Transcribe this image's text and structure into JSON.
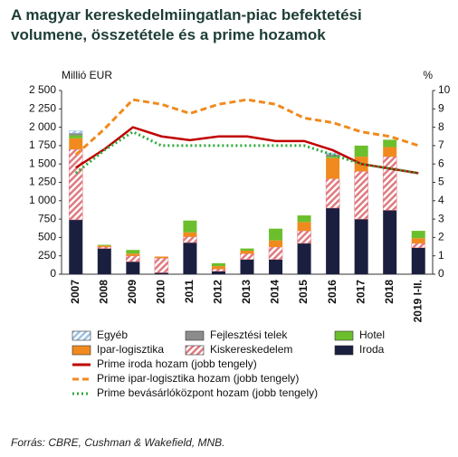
{
  "chart_data": {
    "type": "bar",
    "title": "A magyar kereskedelmiingatlan-piac befektetési volumene, összetétele és a prime hozamok",
    "y_label": "Millió EUR",
    "y2_label": "%",
    "source": "Forrás: CBRE, Cushman & Wakefield, MNB.",
    "categories": [
      "2007",
      "2008",
      "2009",
      "2010",
      "2011",
      "2012",
      "2013",
      "2014",
      "2015",
      "2016",
      "2017",
      "2018",
      "2019 I-II."
    ],
    "ylim": [
      0,
      2500
    ],
    "yticks": [
      0,
      250,
      500,
      750,
      {
        "value": 1000,
        "label": "1 000"
      },
      {
        "value": 1250,
        "label": "1 250"
      },
      {
        "value": 1500,
        "label": "1 500"
      },
      {
        "value": 1750,
        "label": "1 750"
      },
      {
        "value": 2000,
        "label": "2 000"
      },
      {
        "value": 2250,
        "label": "2 250"
      },
      {
        "value": 2500,
        "label": "2 500"
      }
    ],
    "y2lim": [
      0,
      10
    ],
    "y2ticks": [
      0,
      1,
      2,
      3,
      4,
      5,
      6,
      7,
      8,
      9,
      10
    ],
    "series": [
      {
        "name": "Iroda",
        "color": "#1b1f3f",
        "values": [
          740,
          350,
          170,
          20,
          430,
          40,
          200,
          200,
          420,
          900,
          750,
          870,
          360
        ]
      },
      {
        "name": "Kiskereskedelem",
        "color": "#e07a80",
        "hatch": true,
        "values": [
          960,
          20,
          80,
          200,
          80,
          30,
          80,
          170,
          170,
          400,
          650,
          730,
          60
        ]
      },
      {
        "name": "Ipar-logisztika",
        "color": "#f08a1e",
        "values": [
          150,
          20,
          30,
          20,
          60,
          40,
          40,
          90,
          120,
          280,
          200,
          130,
          70
        ]
      },
      {
        "name": "Hotel",
        "color": "#6cbf2c",
        "values": [
          40,
          10,
          50,
          0,
          160,
          40,
          30,
          160,
          90,
          20,
          150,
          100,
          100
        ]
      },
      {
        "name": "Fejlesztési telek",
        "color": "#8c8c8c",
        "values": [
          30,
          0,
          0,
          0,
          0,
          0,
          0,
          0,
          0,
          30,
          0,
          0,
          0
        ]
      },
      {
        "name": "Egyéb",
        "color": "#9cc3e6",
        "hatch": true,
        "values": [
          30,
          0,
          0,
          0,
          0,
          0,
          0,
          0,
          0,
          20,
          0,
          0,
          0
        ]
      },
      {
        "name": "Prime iroda hozam (jobb tengely)",
        "type": "line",
        "axis": "y2",
        "style": "solid",
        "color": "#c00000",
        "values": [
          5.8,
          6.8,
          8.0,
          7.5,
          7.3,
          7.5,
          7.5,
          7.25,
          7.25,
          6.75,
          6.0,
          5.75,
          5.5
        ]
      },
      {
        "name": "Prime ipar-logisztika hozam (jobb tengely)",
        "type": "line",
        "axis": "y2",
        "style": "dashed",
        "color": "#f08a1e",
        "values": [
          6.5,
          7.9,
          9.5,
          9.25,
          8.75,
          9.25,
          9.5,
          9.25,
          8.5,
          8.25,
          7.75,
          7.5,
          7.0
        ]
      },
      {
        "name": "Prime bevásárlóközpont hozam (jobb tengely)",
        "type": "line",
        "axis": "y2",
        "style": "dotted",
        "color": "#2eaa3a",
        "values": [
          5.5,
          6.75,
          7.75,
          7.0,
          7.0,
          7.0,
          7.0,
          7.0,
          7.0,
          6.5,
          6.0,
          5.75,
          5.5
        ]
      }
    ]
  }
}
